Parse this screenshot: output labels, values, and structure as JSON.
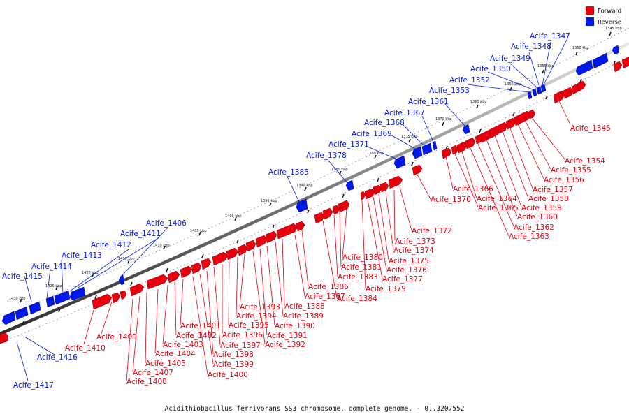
{
  "legend": {
    "forward_label": "Forward",
    "reverse_label": "Reverse",
    "forward_color": "#e8000f",
    "reverse_color": "#0018e8"
  },
  "caption": "Acidithiobacillus ferrivorans SS3 chromosome, complete genome. - 0..3207552",
  "ticks": [
    "1345 kbp",
    "1350 kbp",
    "1355 kbp",
    "1360 kbp",
    "1365 kbp",
    "1370 kbp",
    "1375 kbp",
    "1380 kbp",
    "1385 kbp",
    "1390 kbp",
    "1395 kbp",
    "1400 kbp",
    "1405 kbp",
    "1410 kbp",
    "1415 kbp",
    "1420 kbp",
    "1425 kbp",
    "1430 kbp"
  ],
  "reverse_genes": [
    "Acife_1347",
    "Acife_1348",
    "Acife_1349",
    "Acife_1350",
    "Acife_1352",
    "Acife_1353",
    "Acife_1361",
    "Acife_1367",
    "Acife_1368",
    "Acife_1369",
    "Acife_1371",
    "Acife_1378",
    "Acife_1385",
    "Acife_1406",
    "Acife_1411",
    "Acife_1412",
    "Acife_1413",
    "Acife_1414",
    "Acife_1415",
    "Acife_1416",
    "Acife_1417"
  ],
  "forward_genes": [
    "Acife_1345",
    "Acife_1354",
    "Acife_1355",
    "Acife_1356",
    "Acife_1357",
    "Acife_1358",
    "Acife_1359",
    "Acife_1360",
    "Acife_1362",
    "Acife_1363",
    "Acife_1364",
    "Acife_1365",
    "Acife_1366",
    "Acife_1370",
    "Acife_1372",
    "Acife_1373",
    "Acife_1374",
    "Acife_1375",
    "Acife_1376",
    "Acife_1377",
    "Acife_1379",
    "Acife_1380",
    "Acife_1381",
    "Acife_1383",
    "Acife_1384",
    "Acife_1386",
    "Acife_1387",
    "Acife_1388",
    "Acife_1389",
    "Acife_1390",
    "Acife_1391",
    "Acife_1392",
    "Acife_1393",
    "Acife_1394",
    "Acife_1395",
    "Acife_1396",
    "Acife_1397",
    "Acife_1398",
    "Acife_1399",
    "Acife_1400",
    "Acife_1401",
    "Acife_1402",
    "Acife_1403",
    "Acife_1404",
    "Acife_1405",
    "Acife_1407",
    "Acife_1408",
    "Acife_1409",
    "Acife_1410"
  ]
}
